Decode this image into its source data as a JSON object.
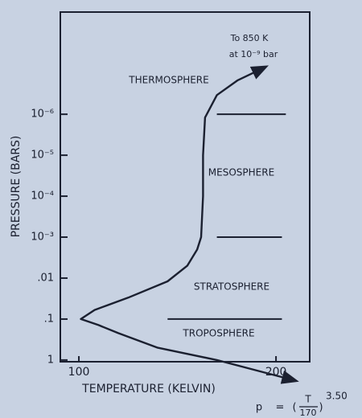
{
  "chart_data": {
    "type": "line",
    "xlabel": "TEMPERATURE (KELVIN)",
    "ylabel": "PRESSURE (BARS)",
    "xlim": [
      90.6,
      217.1
    ],
    "xticks": [
      100,
      200
    ],
    "ylim": [
      1.1,
      3.2e-09
    ],
    "log_y": true,
    "yticks": [
      {
        "value": 1e-06,
        "label": "10⁻⁶"
      },
      {
        "value": 1e-05,
        "label": "10⁻⁵"
      },
      {
        "value": 0.0001,
        "label": "10⁻⁴"
      },
      {
        "value": 0.001,
        "label": "10⁻³"
      },
      {
        "value": 0.01,
        "label": ".01"
      },
      {
        "value": 0.1,
        "label": ".1"
      },
      1
    ],
    "series": [
      {
        "color": "#1b2030",
        "x": [
          194.7,
          180.4,
          170,
          164,
          163,
          163,
          162,
          160,
          155,
          145,
          125,
          108,
          101,
          110,
          120,
          140,
          170,
          210
        ],
        "values": [
          7e-08,
          1.5e-07,
          3.4e-07,
          1.2e-06,
          1e-05,
          0.0001,
          0.001,
          0.002,
          0.005,
          0.012,
          0.03,
          0.06,
          0.1,
          0.14,
          0.22,
          0.5,
          1,
          3.2
        ]
      }
    ],
    "boundaries": [
      {
        "x": [
          170,
          205
        ],
        "y": [
          1e-06,
          1e-06
        ]
      },
      {
        "x": [
          170,
          203
        ],
        "y": [
          0.001,
          0.001
        ]
      },
      {
        "x": [
          145,
          203
        ],
        "y": [
          0.1,
          0.1
        ]
      }
    ],
    "annotations": [
      "THERMOSPHERE",
      "MESOSPHERE",
      "STRATOSPHERE",
      "TROPOSPHERE",
      "To 850 K",
      "at 10⁻⁹ bar"
    ],
    "formula": {
      "lhs": "p",
      "eq": "=",
      "num": "T",
      "den": "170",
      "exp": "3.50"
    }
  }
}
